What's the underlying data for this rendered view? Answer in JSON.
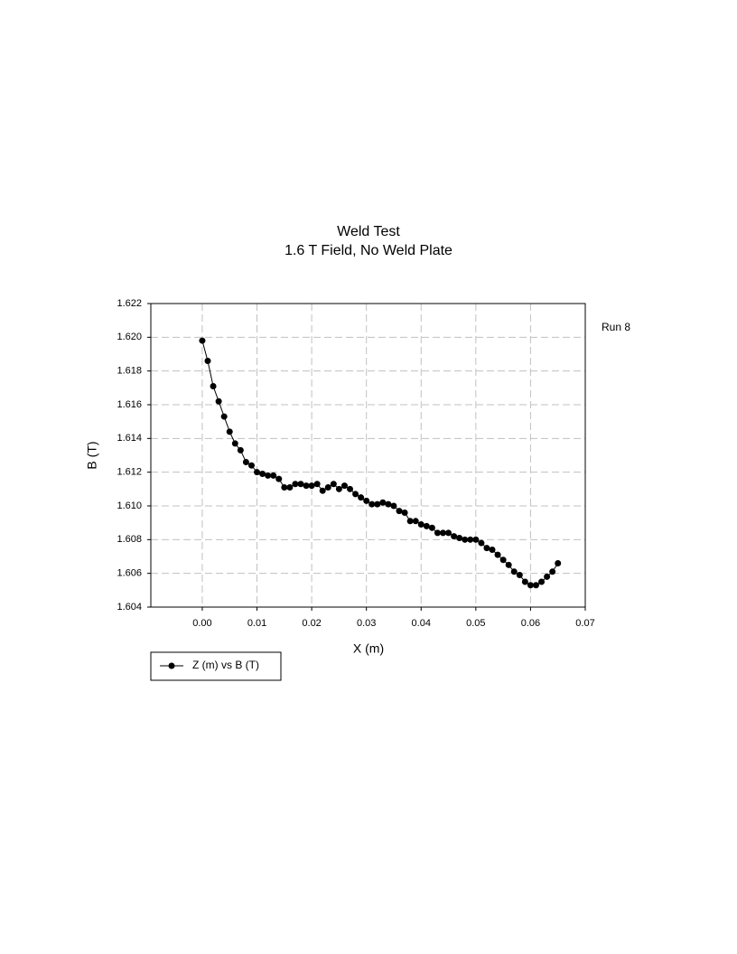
{
  "chart_data": {
    "type": "line",
    "title": "Weld Test",
    "subtitle": "1.6 T Field, No Weld Plate",
    "x_label": "X (m)",
    "y_label": "B (T)",
    "annotation": "Run 8",
    "grid": true,
    "grid_style": "dashed",
    "legend_position": "bottom-left",
    "x": [
      0,
      0.001,
      0.002,
      0.003,
      0.004,
      0.005,
      0.006,
      0.007,
      0.008,
      0.009,
      0.01,
      0.011,
      0.012,
      0.013,
      0.014,
      0.015,
      0.016,
      0.017,
      0.018,
      0.019,
      0.02,
      0.021,
      0.022,
      0.023,
      0.024,
      0.025,
      0.026,
      0.027,
      0.028,
      0.029,
      0.03,
      0.031,
      0.032,
      0.033,
      0.034,
      0.035,
      0.036,
      0.037,
      0.038,
      0.039,
      0.04,
      0.041,
      0.042,
      0.043,
      0.044,
      0.045,
      0.046,
      0.047,
      0.048,
      0.049,
      0.05,
      0.051,
      0.052,
      0.053,
      0.054,
      0.055,
      0.056,
      0.057,
      0.058,
      0.059,
      0.06,
      0.061,
      0.062,
      0.063,
      0.064,
      0.065
    ],
    "series": [
      {
        "name": "Z (m) vs B (T)",
        "color": "#000000",
        "values": [
          1.6198,
          1.6186,
          1.6171,
          1.6162,
          1.6153,
          1.6144,
          1.6137,
          1.6133,
          1.6126,
          1.6124,
          1.612,
          1.6119,
          1.6118,
          1.6118,
          1.6116,
          1.6111,
          1.6111,
          1.6113,
          1.6113,
          1.6112,
          1.6112,
          1.6113,
          1.6109,
          1.6111,
          1.6113,
          1.611,
          1.6112,
          1.611,
          1.6107,
          1.6105,
          1.6103,
          1.6101,
          1.6101,
          1.6102,
          1.6101,
          1.61,
          1.6097,
          1.6096,
          1.6091,
          1.6091,
          1.6089,
          1.6088,
          1.6087,
          1.6084,
          1.6084,
          1.6084,
          1.6082,
          1.6081,
          1.608,
          1.608,
          1.608,
          1.6078,
          1.6075,
          1.6074,
          1.6071,
          1.6068,
          1.6065,
          1.6061,
          1.6059,
          1.6055,
          1.6053,
          1.6053,
          1.6055,
          1.6058,
          1.6061,
          1.6066
        ]
      }
    ],
    "xlim": [
      -0.0094,
      0.07
    ],
    "xticks": [
      {
        "value": 0,
        "label": "0.00"
      },
      0.01,
      0.02,
      0.03,
      0.04,
      0.05,
      0.06,
      0.07
    ],
    "ylim": [
      1.604,
      1.622
    ],
    "yticks": [
      1.604,
      1.606,
      1.608,
      {
        "value": 1.61,
        "label": "1.610"
      },
      1.612,
      1.614,
      1.616,
      1.618,
      {
        "value": 1.62,
        "label": "1.620"
      },
      1.622
    ]
  }
}
